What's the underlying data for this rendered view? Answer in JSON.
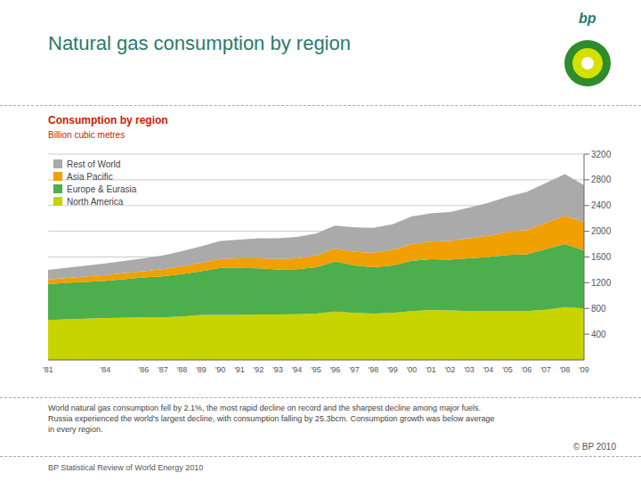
{
  "chart_data": {
    "type": "area",
    "stacked": true,
    "title": "Natural gas consumption by region",
    "subtitle": "Consumption by region",
    "y_label": "Billion cubic metres",
    "annotations": [
      "World natural gas consumption fell by 2.1%, the most rapid decline on record and the sharpest decline among major fuels.\nRussia experienced the world's largest decline, with consumption falling by 25.3bcm. Consumption growth was below average\nin every region.",
      "© BP 2010",
      "BP Statistical Review of World Energy 2010",
      "bp"
    ],
    "x": [
      1981,
      1984,
      1986,
      1987,
      1988,
      1989,
      1990,
      1991,
      1992,
      1993,
      1994,
      1995,
      1996,
      1997,
      1998,
      1999,
      2000,
      2001,
      2002,
      2003,
      2004,
      2005,
      2006,
      2007,
      2008,
      2009
    ],
    "xlim": [
      1981,
      2009
    ],
    "xticks": [
      {
        "value": 1981,
        "label": "'81"
      },
      {
        "value": 1984,
        "label": "'84"
      },
      {
        "value": 1986,
        "label": "'86"
      },
      {
        "value": 1987,
        "label": "'87"
      },
      {
        "value": 1988,
        "label": "'88"
      },
      {
        "value": 1989,
        "label": "'89"
      },
      {
        "value": 1990,
        "label": "'90"
      },
      {
        "value": 1991,
        "label": "'91"
      },
      {
        "value": 1992,
        "label": "'92"
      },
      {
        "value": 1993,
        "label": "'93"
      },
      {
        "value": 1994,
        "label": "'94"
      },
      {
        "value": 1995,
        "label": "'95"
      },
      {
        "value": 1996,
        "label": "'96"
      },
      {
        "value": 1997,
        "label": "'97"
      },
      {
        "value": 1998,
        "label": "'98"
      },
      {
        "value": 1999,
        "label": "'99"
      },
      {
        "value": 2000,
        "label": "'00"
      },
      {
        "value": 2001,
        "label": "'01"
      },
      {
        "value": 2002,
        "label": "'02"
      },
      {
        "value": 2003,
        "label": "'03"
      },
      {
        "value": 2004,
        "label": "'04"
      },
      {
        "value": 2005,
        "label": "'05"
      },
      {
        "value": 2006,
        "label": "'06"
      },
      {
        "value": 2007,
        "label": "'07"
      },
      {
        "value": 2008,
        "label": "'08"
      },
      {
        "value": 2009,
        "label": "'09"
      }
    ],
    "ylim": [
      0,
      3200
    ],
    "yticks": [
      400,
      800,
      1200,
      1600,
      2000,
      2400,
      2800,
      3200
    ],
    "grid": true,
    "legend": "upper left",
    "series": [
      {
        "name": "North America",
        "color": "#c8d400",
        "values": [
          620,
          650,
          660,
          660,
          675,
          700,
          700,
          700,
          705,
          705,
          710,
          720,
          750,
          730,
          720,
          730,
          760,
          775,
          770,
          760,
          760,
          760,
          760,
          780,
          820,
          800
        ]
      },
      {
        "name": "Europe & Eurasia",
        "color": "#4cae4c",
        "values": [
          560,
          580,
          620,
          640,
          660,
          680,
          730,
          730,
          720,
          700,
          700,
          720,
          780,
          740,
          720,
          740,
          780,
          790,
          790,
          820,
          840,
          870,
          880,
          940,
          980,
          900
        ]
      },
      {
        "name": "Asia Pacific",
        "color": "#f0a000",
        "values": [
          70,
          90,
          100,
          110,
          120,
          130,
          140,
          150,
          155,
          165,
          170,
          185,
          200,
          210,
          225,
          240,
          260,
          275,
          290,
          310,
          330,
          360,
          380,
          410,
          440,
          440
        ]
      },
      {
        "name": "Rest of World",
        "color": "#aaaaaa",
        "values": [
          150,
          180,
          200,
          215,
          235,
          255,
          280,
          290,
          310,
          320,
          330,
          340,
          360,
          380,
          390,
          400,
          430,
          440,
          450,
          480,
          510,
          550,
          590,
          620,
          650,
          580
        ]
      }
    ]
  }
}
